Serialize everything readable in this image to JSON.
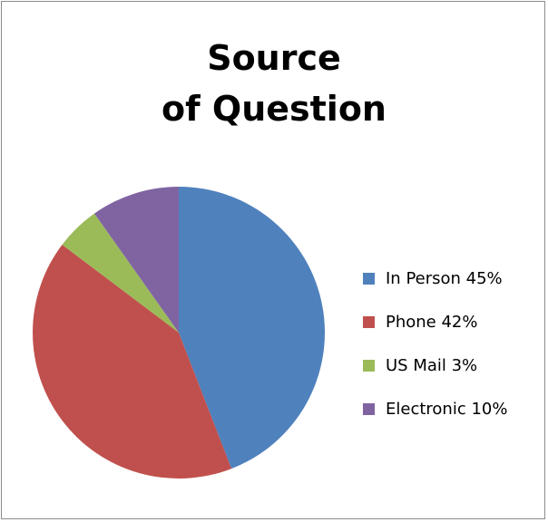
{
  "chart_data": {
    "type": "pie",
    "title_lines": [
      "Source",
      "of Question"
    ],
    "categories": [
      "In Person",
      "Phone",
      "US Mail",
      "Electronic"
    ],
    "values": [
      45,
      42,
      3,
      10
    ],
    "shown_angles_percent": [
      45,
      42,
      5,
      10
    ],
    "legend_labels": [
      "In Person 45%",
      "Phone 42%",
      "US Mail  3%",
      "Electronic 10%"
    ],
    "legend_position": "right",
    "colors": [
      "#4f81bd",
      "#c0504d",
      "#9bbb59",
      "#8064a2"
    ]
  }
}
